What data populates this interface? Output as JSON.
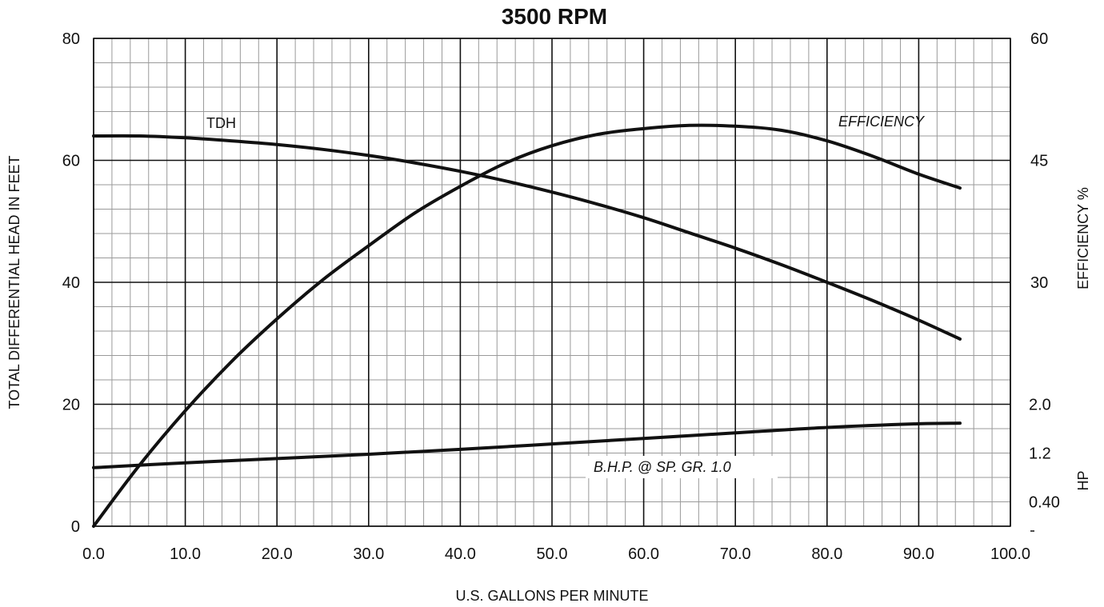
{
  "chart_data": {
    "type": "line",
    "title": "3500 RPM",
    "xlabel": "U.S. GALLONS PER MINUTE",
    "ylabel_left": "TOTAL DIFFERENTIAL HEAD IN FEET",
    "ylabel_right_efficiency": "EFFICIENCY %",
    "ylabel_right_hp": "HP",
    "xlim": [
      0,
      100
    ],
    "ylim_left": [
      0,
      80
    ],
    "x_ticks": [
      "0.0",
      "10.0",
      "20.0",
      "30.0",
      "40.0",
      "50.0",
      "60.0",
      "70.0",
      "80.0",
      "90.0",
      "100.0"
    ],
    "y_left_ticks": [
      "0",
      "20",
      "40",
      "60",
      "80"
    ],
    "efficiency_ticks": [
      {
        "label": "30",
        "value": 30
      },
      {
        "label": "45",
        "value": 45
      },
      {
        "label": "60",
        "value": 60
      }
    ],
    "hp_ticks": [
      {
        "label": "0.40",
        "value": 0.4
      },
      {
        "label": "1.2",
        "value": 1.2
      },
      {
        "label": "2.0",
        "value": 2.0
      }
    ],
    "grid": true,
    "series": [
      {
        "name": "TDH",
        "axis": "head_ft",
        "label_style": "normal",
        "x": [
          0,
          5,
          10,
          15,
          20,
          25,
          30,
          35,
          40,
          45,
          50,
          55,
          60,
          65,
          70,
          75,
          80,
          85,
          90,
          94.5
        ],
        "values": [
          64,
          64,
          63.7,
          63.2,
          62.6,
          61.8,
          60.8,
          59.6,
          58.2,
          56.6,
          54.8,
          52.8,
          50.6,
          48.1,
          45.6,
          42.9,
          40.0,
          37.0,
          33.8,
          30.7
        ]
      },
      {
        "name": "EFFICIENCY",
        "axis": "efficiency_pct",
        "label_style": "italic",
        "x": [
          0,
          5,
          10,
          15,
          20,
          25,
          30,
          35,
          40,
          45,
          50,
          55,
          60,
          65,
          70,
          75,
          80,
          85,
          90,
          94.5
        ],
        "values": [
          0,
          7.5,
          14.2,
          20.2,
          25.5,
          30.3,
          34.5,
          38.5,
          41.8,
          44.7,
          46.8,
          48.2,
          48.9,
          49.3,
          49.2,
          48.7,
          47.4,
          45.5,
          43.3,
          41.6
        ]
      },
      {
        "name": "B.H.P. @ SP. GR. 1.0",
        "axis": "hp",
        "label_style": "italic",
        "x": [
          0,
          10,
          20,
          30,
          40,
          50,
          60,
          70,
          80,
          90,
          94.5
        ],
        "values": [
          0.96,
          1.04,
          1.11,
          1.18,
          1.26,
          1.35,
          1.44,
          1.53,
          1.62,
          1.68,
          1.69
        ]
      }
    ]
  }
}
